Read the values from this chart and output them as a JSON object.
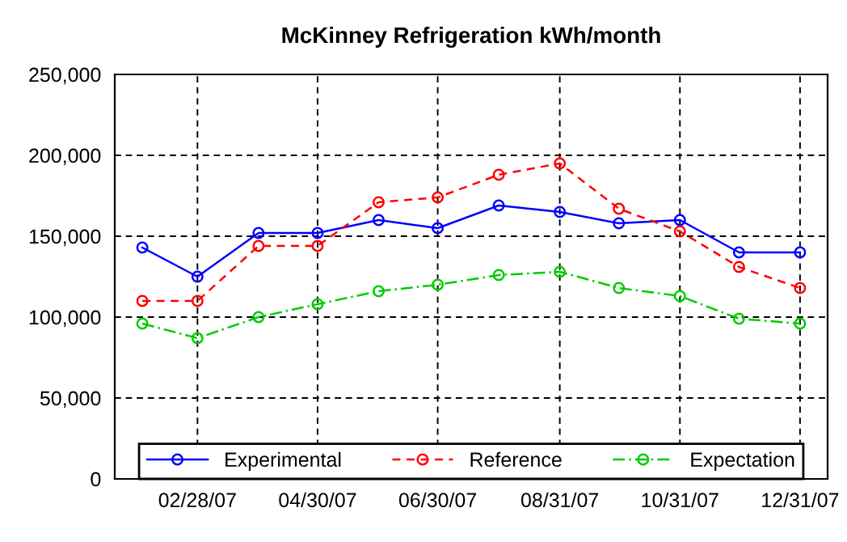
{
  "chart_data": {
    "type": "line",
    "title": "McKinney Refrigeration kWh/month",
    "x": [
      "2007-01-31",
      "2007-02-28",
      "2007-03-31",
      "2007-04-30",
      "2007-05-31",
      "2007-06-30",
      "2007-07-31",
      "2007-08-31",
      "2007-09-30",
      "2007-10-31",
      "2007-11-30",
      "2007-12-31"
    ],
    "series": [
      {
        "name": "Experimental",
        "color": "#0000ff",
        "line_style": "solid",
        "values": [
          143000,
          125000,
          152000,
          152000,
          160000,
          155000,
          169000,
          165000,
          158000,
          160000,
          140000,
          140000
        ]
      },
      {
        "name": "Reference",
        "color": "#ff0000",
        "line_style": "dashed",
        "values": [
          110000,
          110000,
          144000,
          144000,
          171000,
          174000,
          188000,
          195000,
          167000,
          153000,
          131000,
          118000
        ]
      },
      {
        "name": "Expectation",
        "color": "#00cc00",
        "line_style": "dashdot",
        "values": [
          96000,
          87000,
          100000,
          108000,
          116000,
          120000,
          126000,
          128000,
          118000,
          113000,
          99000,
          96000
        ]
      }
    ],
    "marker": "circle",
    "xlim": [
      "2007-01-17",
      "2008-01-14"
    ],
    "xticks": [
      {
        "value": "2007-02-28",
        "label": "02/28/07"
      },
      {
        "value": "2007-04-30",
        "label": "04/30/07"
      },
      {
        "value": "2007-06-30",
        "label": "06/30/07"
      },
      {
        "value": "2007-08-31",
        "label": "08/31/07"
      },
      {
        "value": "2007-10-31",
        "label": "10/31/07"
      },
      {
        "value": "2007-12-31",
        "label": "12/31/07"
      }
    ],
    "ylim": [
      0,
      250000
    ],
    "yticks": [
      0,
      {
        "value": 50000,
        "label": "50,000"
      },
      {
        "value": 100000,
        "label": "100,000"
      },
      {
        "value": 150000,
        "label": "150,000"
      },
      {
        "value": 200000,
        "label": "200,000"
      },
      {
        "value": 250000,
        "label": "250,000"
      }
    ],
    "grid": true,
    "legend": "bottom"
  }
}
